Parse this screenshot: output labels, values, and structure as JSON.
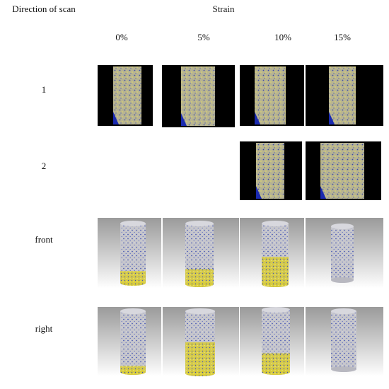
{
  "header": {
    "row_header": "Direction of scan",
    "column_header": "Strain"
  },
  "columns": [
    "0%",
    "5%",
    "10%",
    "15%"
  ],
  "rows": [
    "1",
    "2",
    "front",
    "right"
  ]
}
